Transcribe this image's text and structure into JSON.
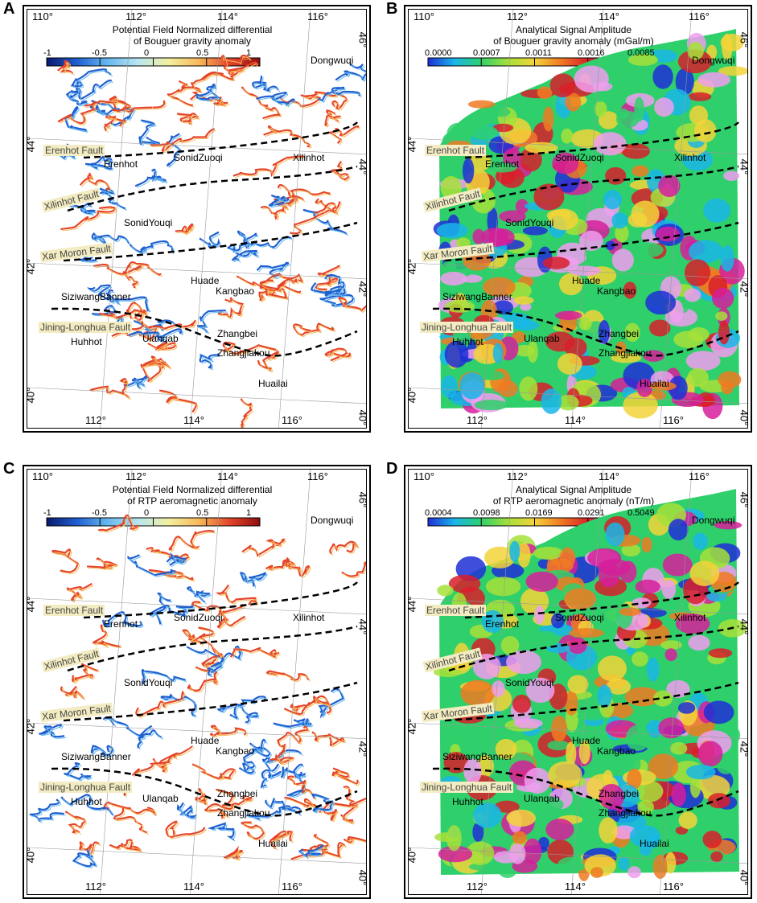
{
  "panels": [
    {
      "letter": "A",
      "title_line1": "Potential Field Normalized differential",
      "title_line2": "of Bouguer gravity anomaly",
      "legend_type": "diverging",
      "colorbar_ticks": [
        "-1",
        "-0.5",
        "0",
        "0.5",
        "1"
      ]
    },
    {
      "letter": "B",
      "title_line1": "Analytical Signal Amplitude",
      "title_line2": "of Bouguer gravity anomaly (mGal/m)",
      "legend_type": "rainbow",
      "colorbar_ticks": [
        "0.0000",
        "0.0007",
        "0.0011",
        "0.0016",
        "0.0085"
      ]
    },
    {
      "letter": "C",
      "title_line1": "Potential Field Normalized differential",
      "title_line2": "of RTP aeromagnetic anomaly",
      "legend_type": "diverging",
      "colorbar_ticks": [
        "-1",
        "-0.5",
        "0",
        "0.5",
        "1"
      ]
    },
    {
      "letter": "D",
      "title_line1": "Analytical Signal Amplitude",
      "title_line2": "of RTP aeromagnetic anomaly (nT/m)",
      "legend_type": "rainbow",
      "colorbar_ticks": [
        "0.0004",
        "0.0098",
        "0.0169",
        "0.0291",
        "0.5049"
      ]
    }
  ],
  "coordinates": {
    "top_lon": [
      "110°",
      "112°",
      "114°",
      "116°"
    ],
    "bottom_lon": [
      "112°",
      "114°",
      "116°"
    ],
    "left_lat": [
      "44°",
      "42°",
      "40°"
    ],
    "right_lat": [
      "46°",
      "44°",
      "42°",
      "40°"
    ]
  },
  "places": {
    "dongwuqi": "Dongwuqi",
    "erenhot": "Erenhot",
    "sonidzuoqi": "SonidZuoqi",
    "xilinhot": "Xilinhot",
    "sonidyouqi": "SonidYouqi",
    "huade": "Huade",
    "kangbao": "Kangbao",
    "siziwangbanner": "SiziwangBanner",
    "huhhot": "Huhhot",
    "ulanqab": "Ulanqab",
    "zhangbei": "Zhangbei",
    "zhangjiakou": "Zhangjiakou",
    "huailai": "Huailai"
  },
  "faults": {
    "erenhot_fault": "Erenhot Fault",
    "xilinhot_fault": "Xilinhot Fault",
    "xarmoron_fault": "Xar Moron Fault",
    "jininglonghua_fault": "Jining-Longhua Fault"
  },
  "colors": {
    "diverging": [
      "#0a1a6e",
      "#1f5fd0",
      "#66b8f0",
      "#b8e6f0",
      "#f2f0a0",
      "#f7b95a",
      "#e5452a",
      "#8e0f0f"
    ],
    "rainbow": [
      "#1e2fd6",
      "#19b6e8",
      "#2fd06b",
      "#a6e03a",
      "#f3d33a",
      "#f07a22",
      "#d81f2a",
      "#d61e9b",
      "#f09ef0"
    ],
    "fault_line": "#000000",
    "fault_label_bg": "#f3ecc2"
  }
}
